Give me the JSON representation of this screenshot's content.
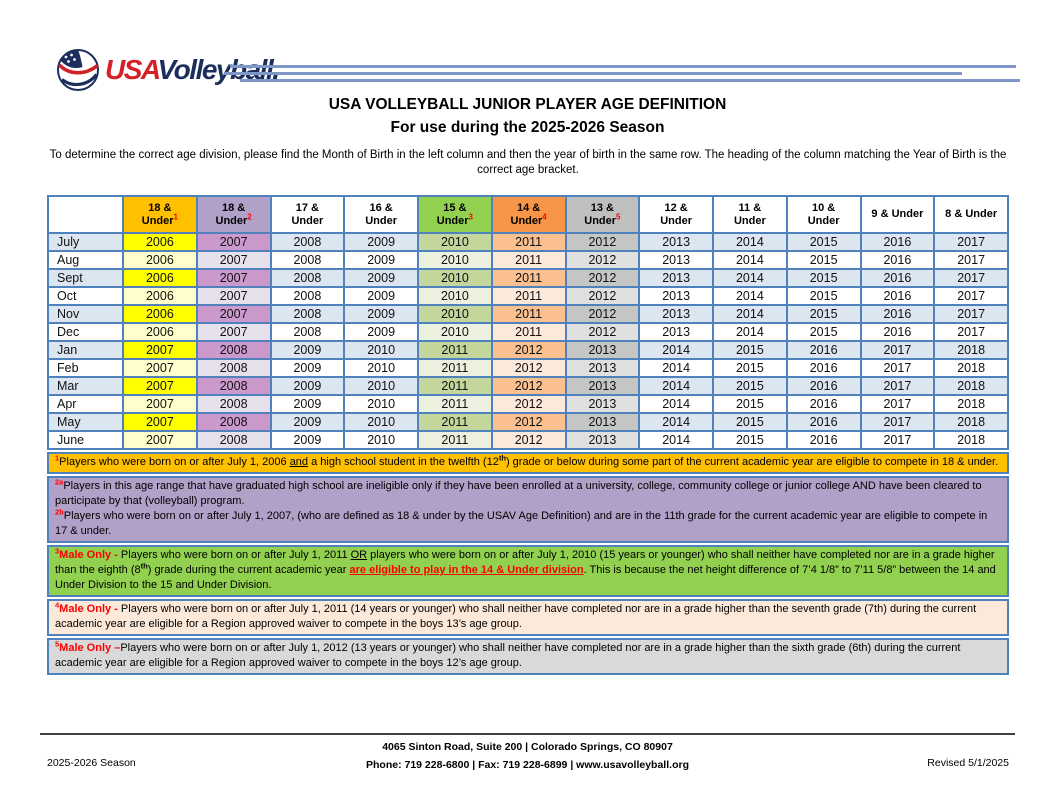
{
  "logo": {
    "usa": "USA",
    "volleyball": "Volleyball."
  },
  "title": "USA VOLLEYBALL JUNIOR PLAYER AGE DEFINITION",
  "subtitle": "For use during the 2025-2026 Season",
  "intro": "To determine the correct age division, please find the Month of Birth in the left column and then the year of birth in the same row. The heading of the column matching the Year of Birth is the correct age bracket.",
  "colors": {
    "tbl-border": "#4F81BD",
    "rule-blue": "#7E96C8",
    "footer-rule": "#3F3F3F",
    "marker-red": "#FF0000",
    "logo-red": "#D42127",
    "logo-navy": "#1C2E5C",
    "hdr-yellow": "#FFC000",
    "hdr-purple": "#B1A0C7",
    "hdr-green": "#92D050",
    "hdr-orange": "#F79646",
    "hdr-gray": "#BFBFBF",
    "cell-blue": "#DCE6F1",
    "yellow": "#FFFF00",
    "yellow-lt": "#FFFFCC",
    "purple": "#CC99CC",
    "purple-lt": "#E6DFEC",
    "green": "#C3D69B",
    "green-lt": "#EBF1DE",
    "orange": "#FAC090",
    "orange-lt": "#FDE9D9",
    "gray": "#C6C6C6",
    "gray-lt": "#E0E0E0"
  },
  "table": {
    "columns": [
      {
        "top": "18 &",
        "bottom": "Under",
        "sup": "1",
        "type": "yellow"
      },
      {
        "top": "18 &",
        "bottom": "Under",
        "sup": "2",
        "type": "purple"
      },
      {
        "top": "17 &",
        "bottom": "Under",
        "sup": "",
        "type": "plain"
      },
      {
        "top": "16 &",
        "bottom": "Under",
        "sup": "",
        "type": "plain"
      },
      {
        "top": "15 &",
        "bottom": "Under",
        "sup": "3",
        "type": "green"
      },
      {
        "top": "14 &",
        "bottom": "Under",
        "sup": "4",
        "type": "orange"
      },
      {
        "top": "13 &",
        "bottom": "Under",
        "sup": "5",
        "type": "gray"
      },
      {
        "top": "12 &",
        "bottom": "Under",
        "sup": "",
        "type": "plain"
      },
      {
        "top": "11 &",
        "bottom": "Under",
        "sup": "",
        "type": "plain"
      },
      {
        "top": "10 &",
        "bottom": "Under",
        "sup": "",
        "type": "plain"
      },
      {
        "top": "9 & Under",
        "bottom": "",
        "sup": "",
        "type": "plain"
      },
      {
        "top": "8 & Under",
        "bottom": "",
        "sup": "",
        "type": "plain"
      }
    ],
    "rows": [
      {
        "month": "July",
        "years": [
          2006,
          2007,
          2008,
          2009,
          2010,
          2011,
          2012,
          2013,
          2014,
          2015,
          2016,
          2017
        ]
      },
      {
        "month": "Aug",
        "years": [
          2006,
          2007,
          2008,
          2009,
          2010,
          2011,
          2012,
          2013,
          2014,
          2015,
          2016,
          2017
        ]
      },
      {
        "month": "Sept",
        "years": [
          2006,
          2007,
          2008,
          2009,
          2010,
          2011,
          2012,
          2013,
          2014,
          2015,
          2016,
          2017
        ]
      },
      {
        "month": "Oct",
        "years": [
          2006,
          2007,
          2008,
          2009,
          2010,
          2011,
          2012,
          2013,
          2014,
          2015,
          2016,
          2017
        ]
      },
      {
        "month": "Nov",
        "years": [
          2006,
          2007,
          2008,
          2009,
          2010,
          2011,
          2012,
          2013,
          2014,
          2015,
          2016,
          2017
        ]
      },
      {
        "month": "Dec",
        "years": [
          2006,
          2007,
          2008,
          2009,
          2010,
          2011,
          2012,
          2013,
          2014,
          2015,
          2016,
          2017
        ]
      },
      {
        "month": "Jan",
        "years": [
          2007,
          2008,
          2009,
          2010,
          2011,
          2012,
          2013,
          2014,
          2015,
          2016,
          2017,
          2018
        ]
      },
      {
        "month": "Feb",
        "years": [
          2007,
          2008,
          2009,
          2010,
          2011,
          2012,
          2013,
          2014,
          2015,
          2016,
          2017,
          2018
        ]
      },
      {
        "month": "Mar",
        "years": [
          2007,
          2008,
          2009,
          2010,
          2011,
          2012,
          2013,
          2014,
          2015,
          2016,
          2017,
          2018
        ]
      },
      {
        "month": "Apr",
        "years": [
          2007,
          2008,
          2009,
          2010,
          2011,
          2012,
          2013,
          2014,
          2015,
          2016,
          2017,
          2018
        ]
      },
      {
        "month": "May",
        "years": [
          2007,
          2008,
          2009,
          2010,
          2011,
          2012,
          2013,
          2014,
          2015,
          2016,
          2017,
          2018
        ]
      },
      {
        "month": "June",
        "years": [
          2007,
          2008,
          2009,
          2010,
          2011,
          2012,
          2013,
          2014,
          2015,
          2016,
          2017,
          2018
        ]
      }
    ]
  },
  "footnotes": [
    {
      "id": "1",
      "bg": "#FFC000",
      "parts": [
        {
          "s": "sup-red",
          "t": "1"
        },
        {
          "s": "plain",
          "t": "Players who were born on or after July 1, 2006 "
        },
        {
          "s": "underline",
          "t": "and"
        },
        {
          "s": "plain",
          "t": " a high school student in the twelfth (12"
        },
        {
          "s": "sup",
          "t": "th"
        },
        {
          "s": "plain",
          "t": ") grade or below during some part of the current academic year are eligible to compete in 18 & under."
        }
      ]
    },
    {
      "id": "2",
      "bg": "#B1A0C7",
      "parts": [
        {
          "s": "sup-red",
          "t": "2a"
        },
        {
          "s": "plain",
          "t": "Players in this age range that have graduated high school are ineligible only if they have been enrolled at a university, college, community college or junior college AND have been cleared to participate by that (volleyball) program."
        },
        {
          "s": "br",
          "t": ""
        },
        {
          "s": "sup-red",
          "t": "2b"
        },
        {
          "s": "plain",
          "t": "Players who were born on or after July 1, 2007, (who are defined as 18 & under by the USAV Age Definition) and are in the 11th grade for the current academic year are eligible to compete in 17 & under."
        }
      ]
    },
    {
      "id": "3",
      "bg": "#92D050",
      "parts": [
        {
          "s": "sup-red",
          "t": "3"
        },
        {
          "s": "red-bold",
          "t": "Male Only - "
        },
        {
          "s": "plain",
          "t": "Players who were born on or after July 1, 2011 "
        },
        {
          "s": "underline",
          "t": "OR"
        },
        {
          "s": "plain",
          "t": " players who were born on or after July 1, 2010 (15 years or younger) who shall neither have completed nor are in a grade higher than the eighth (8"
        },
        {
          "s": "sup",
          "t": "th"
        },
        {
          "s": "plain",
          "t": ") grade during the current academic year "
        },
        {
          "s": "red-bold-underline",
          "t": "are eligible to play in the 14 & Under division"
        },
        {
          "s": "plain",
          "t": ".  This is  because the net height difference of 7’4 1/8” to 7’11 5/8” between the 14 and Under Division to the 15 and Under Division."
        }
      ]
    },
    {
      "id": "4",
      "bg": "#FDE9D9",
      "parts": [
        {
          "s": "sup-red",
          "t": "4"
        },
        {
          "s": "red-bold",
          "t": "Male Only - "
        },
        {
          "s": "plain",
          "t": "Players who were born on or after July 1, 2011 (14 years or younger) who shall neither have completed nor are in a grade higher than the seventh grade (7th) during the current academic year are eligible for a Region approved waiver to compete in the boys 13’s age group."
        }
      ]
    },
    {
      "id": "5",
      "bg": "#D9D9D9",
      "parts": [
        {
          "s": "sup-red",
          "t": "5"
        },
        {
          "s": "red-bold",
          "t": "Male Only –"
        },
        {
          "s": "plain",
          "t": "Players who were born on or after July 1, 2012 (13 years or younger) who shall neither have completed nor are in a grade higher than the sixth grade (6th) during the current academic year are eligible for a Region approved waiver to compete in the boys 12’s age group."
        }
      ]
    }
  ],
  "footer": {
    "address": "4065 Sinton Road, Suite 200  |  Colorado Springs, CO  80907",
    "phone": "Phone:  719 228-6800  |  Fax:  719 228-6899  |  www.usavolleyball.org",
    "season": "2025-2026 Season",
    "revised": "Revised 5/1/2025"
  }
}
